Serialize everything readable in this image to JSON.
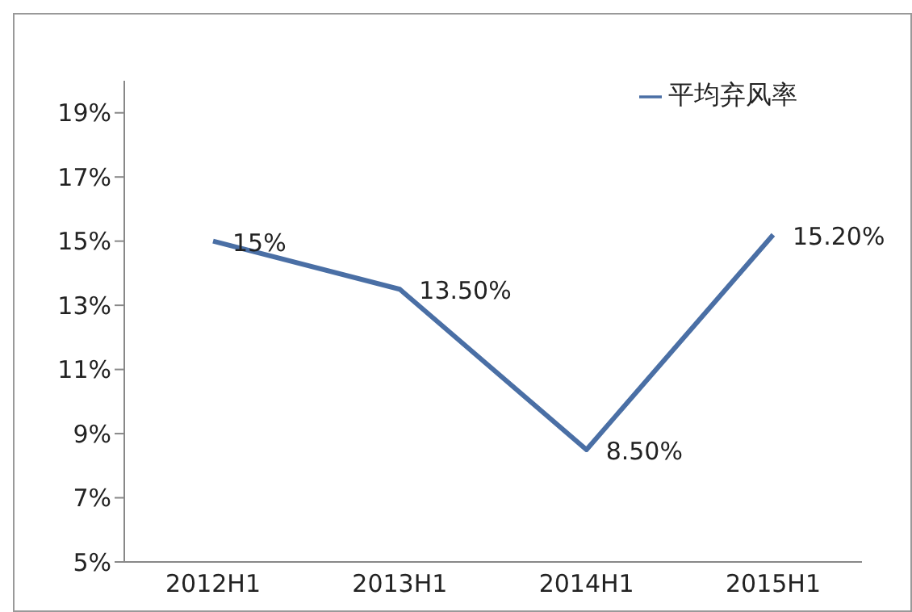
{
  "chart_data": {
    "type": "line",
    "categories": [
      "2012H1",
      "2013H1",
      "2014H1",
      "2015H1"
    ],
    "series": [
      {
        "name": "平均弃风率",
        "color": "#4a6fa5",
        "values": [
          15,
          13.5,
          8.5,
          15.2
        ],
        "value_labels": [
          "15%",
          "13.50%",
          "8.50%",
          "15.20%"
        ]
      }
    ],
    "ylim": [
      5,
      20
    ],
    "yticks": [
      {
        "value": 5,
        "label": "5%"
      },
      {
        "value": 7,
        "label": "7%"
      },
      {
        "value": 9,
        "label": "9%"
      },
      {
        "value": 11,
        "label": "11%"
      },
      {
        "value": 13,
        "label": "13%"
      },
      {
        "value": 15,
        "label": "15%"
      },
      {
        "value": 17,
        "label": "17%"
      },
      {
        "value": 19,
        "label": "19%"
      }
    ],
    "grid": false,
    "legend": "top right",
    "marker": "none",
    "line_style": "solid"
  }
}
